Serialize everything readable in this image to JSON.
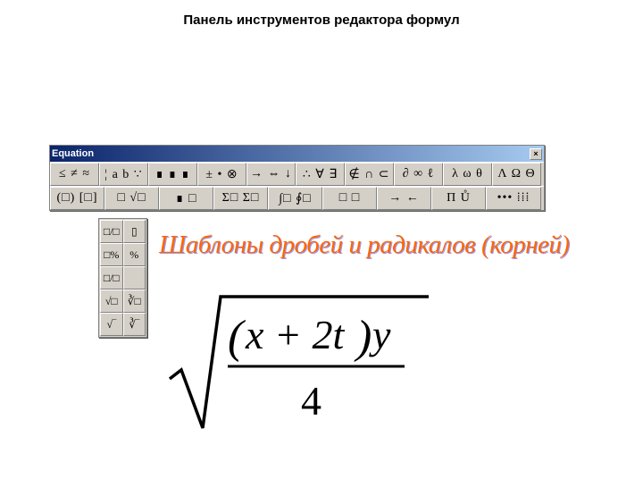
{
  "page": {
    "title": "Панель инструментов редактора формул"
  },
  "window": {
    "title": "Equation",
    "close_label": "×",
    "titlebar_gradient_start": "#0a246a",
    "titlebar_gradient_end": "#a6caf0",
    "row1": [
      "≤ ≠ ≈",
      "¦ a b ∵",
      "∎ ∎ ∎",
      "± • ⊗",
      "→ ⇔ ↓",
      "∴ ∀ ∃",
      "∉ ∩ ⊂",
      "∂ ∞ ℓ",
      "λ ω θ",
      "Λ Ω Θ"
    ],
    "row2": [
      "(□) [□]",
      "□ √□",
      "∎ □",
      "Σ□ Σ□",
      "∫□ ∮□",
      "□ □",
      "→ ←",
      "Π Ů",
      "••• ⁞⁞⁞"
    ]
  },
  "palette": {
    "buttons": [
      "□/□",
      "▯",
      "□%",
      "%",
      "□/□",
      "",
      "√□",
      "∛□",
      "√‾",
      "∛‾"
    ]
  },
  "orange": {
    "text": "Шаблоны дробей и радикалов (корней)",
    "color": "#ff6600",
    "shadow": "#9a9aff"
  },
  "equation": {
    "numerator_inner": "x + 2t",
    "numerator_outer": "y",
    "denominator": "4",
    "stroke": "#000000",
    "font": "Times New Roman"
  }
}
